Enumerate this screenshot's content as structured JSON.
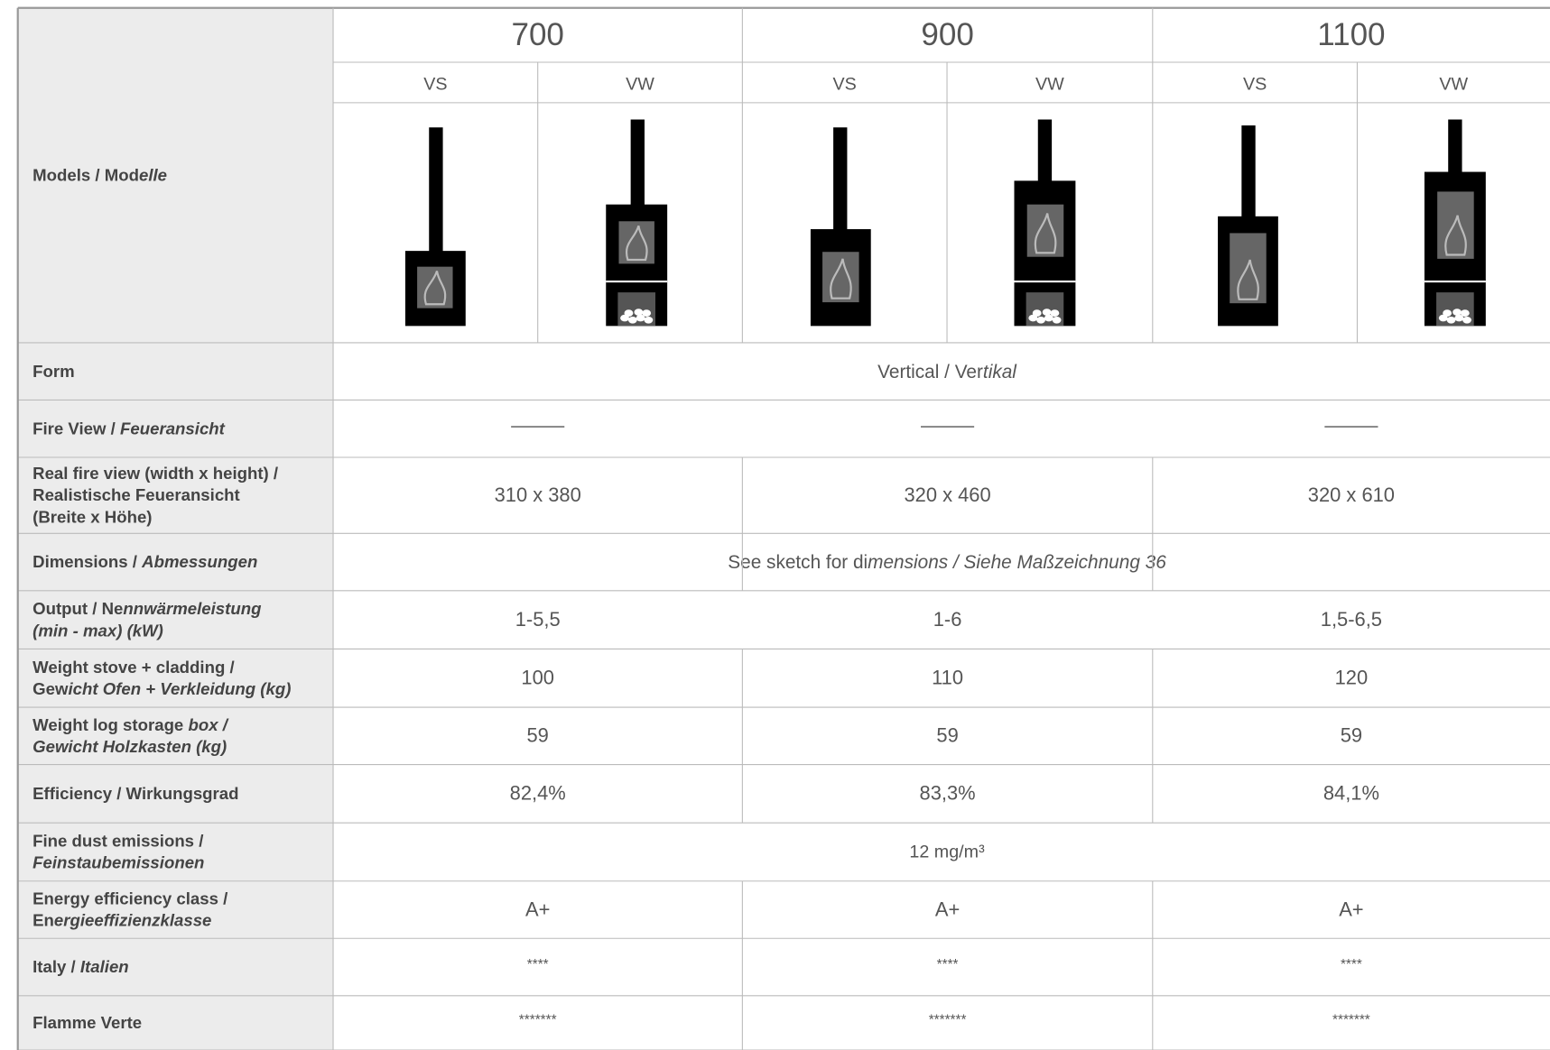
{
  "header": {
    "models": [
      "700",
      "900",
      "1100"
    ],
    "variants": [
      "VS",
      "VW",
      "VS",
      "VW",
      "VS",
      "VW"
    ]
  },
  "rows": [
    {
      "label": [
        [
          {
            "text": "Models / Mod",
            "italic": false
          },
          {
            "text": "elle",
            "italic": true
          }
        ]
      ]
    },
    {
      "label": [
        [
          {
            "text": "Form",
            "italic": false
          }
        ]
      ],
      "value": [
        {
          "text": "Vertical / Ver",
          "italic": false
        },
        {
          "text": "tikal",
          "italic": true
        }
      ]
    },
    {
      "label": [
        [
          {
            "text": "Fire View / ",
            "italic": false
          },
          {
            "text": "Feueransicht",
            "italic": true
          }
        ]
      ],
      "dash": true
    },
    {
      "label": [
        [
          {
            "text": "Real fire view (width x height) /",
            "italic": false
          }
        ],
        [
          {
            "text": "Realistische Feueransicht",
            "italic": false
          }
        ],
        [
          {
            "text": "(Breite x Höhe)",
            "italic": false
          }
        ]
      ],
      "values": [
        "310 x 380",
        "320 x 460",
        "320 x 610"
      ]
    },
    {
      "label": [
        [
          {
            "text": "Dimensions / ",
            "italic": false
          },
          {
            "text": "Abmessungen",
            "italic": true
          }
        ]
      ],
      "value": [
        {
          "text": "See sketch for di",
          "italic": false
        },
        {
          "text": "mensions / Siehe Maßzeichnung 36",
          "italic": true
        }
      ]
    },
    {
      "label": [
        [
          {
            "text": "Output / Ne",
            "italic": false
          },
          {
            "text": "nnwärmeleistung",
            "italic": true
          }
        ],
        [
          {
            "text": "(min - max) (kW)",
            "italic": true
          }
        ]
      ],
      "values": [
        "1-5,5",
        "1-6",
        "1,5-6,5"
      ]
    },
    {
      "label": [
        [
          {
            "text": "Weight stove + cladding /",
            "italic": false
          }
        ],
        [
          {
            "text": "Gew",
            "italic": false
          },
          {
            "text": "icht Ofen + Verkleidung (kg)",
            "italic": true
          }
        ]
      ],
      "values": [
        "100",
        "110",
        "120"
      ]
    },
    {
      "label": [
        [
          {
            "text": "Weight log storage ",
            "italic": false
          },
          {
            "text": "box /",
            "italic": true
          }
        ],
        [
          {
            "text": "Gewicht Holzkasten (kg)",
            "italic": true
          }
        ]
      ],
      "values": [
        "59",
        "59",
        "59"
      ]
    },
    {
      "label": [
        [
          {
            "text": "Efficiency / Wirkungsgrad",
            "italic": false
          }
        ]
      ],
      "values": [
        "82,4%",
        "83,3%",
        "84,1%"
      ]
    },
    {
      "label": [
        [
          {
            "text": "Fine dust emissions /",
            "italic": false
          }
        ],
        [
          {
            "text": "Feinstaubemissionen",
            "italic": true
          }
        ]
      ],
      "value": [
        {
          "text": "12 mg/m³",
          "italic": false
        }
      ]
    },
    {
      "label": [
        [
          {
            "text": "Energy efficiency class /",
            "italic": false
          }
        ],
        [
          {
            "text": "En",
            "italic": false
          },
          {
            "text": "ergieeffizienzklasse",
            "italic": true
          }
        ]
      ],
      "values": [
        "A+",
        "A+",
        "A+"
      ]
    },
    {
      "label": [
        [
          {
            "text": "Italy / ",
            "italic": false
          },
          {
            "text": "Italien",
            "italic": true
          }
        ]
      ],
      "values": [
        "****",
        "****",
        "****"
      ]
    },
    {
      "label": [
        [
          {
            "text": "Flamme Verte",
            "italic": false
          }
        ]
      ],
      "values": [
        "*******",
        "*******",
        "*******"
      ]
    }
  ]
}
